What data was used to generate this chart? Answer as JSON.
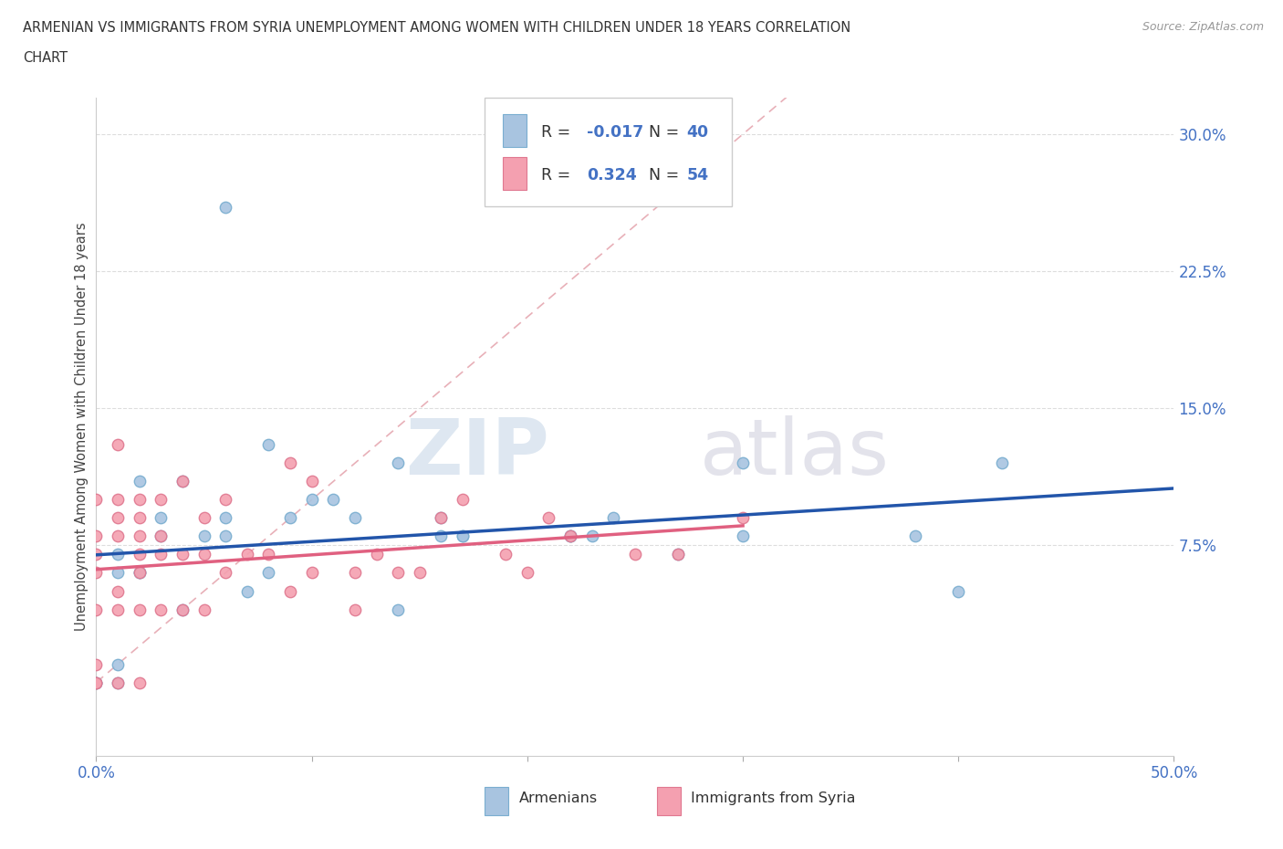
{
  "title_line1": "ARMENIAN VS IMMIGRANTS FROM SYRIA UNEMPLOYMENT AMONG WOMEN WITH CHILDREN UNDER 18 YEARS CORRELATION",
  "title_line2": "CHART",
  "source": "Source: ZipAtlas.com",
  "ylabel": "Unemployment Among Women with Children Under 18 years",
  "xlim": [
    0.0,
    0.5
  ],
  "ylim": [
    -0.04,
    0.32
  ],
  "yticks": [
    0.075,
    0.15,
    0.225,
    0.3
  ],
  "ytick_labels": [
    "7.5%",
    "15.0%",
    "22.5%",
    "30.0%"
  ],
  "armenian_color": "#a8c4e0",
  "armenian_edge_color": "#7aaed0",
  "syria_color": "#f4a0b0",
  "syria_edge_color": "#e07890",
  "armenian_line_color": "#2255aa",
  "syria_line_color": "#e06080",
  "diagonal_color": "#e8b0b8",
  "watermark_zip": "ZIP",
  "watermark_atlas": "atlas",
  "background_color": "#ffffff",
  "grid_color": "#dddddd",
  "tick_color": "#4472c4",
  "armenian_x": [
    0.0,
    0.0,
    0.01,
    0.01,
    0.01,
    0.01,
    0.02,
    0.02,
    0.02,
    0.03,
    0.03,
    0.04,
    0.04,
    0.05,
    0.06,
    0.06,
    0.06,
    0.07,
    0.08,
    0.08,
    0.09,
    0.1,
    0.11,
    0.12,
    0.14,
    0.14,
    0.16,
    0.16,
    0.17,
    0.17,
    0.22,
    0.22,
    0.23,
    0.24,
    0.27,
    0.3,
    0.3,
    0.38,
    0.4,
    0.42
  ],
  "armenian_y": [
    0.0,
    0.0,
    0.0,
    0.01,
    0.06,
    0.07,
    0.06,
    0.06,
    0.11,
    0.08,
    0.09,
    0.04,
    0.11,
    0.08,
    0.08,
    0.09,
    0.26,
    0.05,
    0.06,
    0.13,
    0.09,
    0.1,
    0.1,
    0.09,
    0.12,
    0.04,
    0.08,
    0.09,
    0.08,
    0.08,
    0.08,
    0.08,
    0.08,
    0.09,
    0.07,
    0.12,
    0.08,
    0.08,
    0.05,
    0.12
  ],
  "syria_x": [
    0.0,
    0.0,
    0.0,
    0.0,
    0.0,
    0.0,
    0.0,
    0.0,
    0.01,
    0.01,
    0.01,
    0.01,
    0.01,
    0.01,
    0.01,
    0.02,
    0.02,
    0.02,
    0.02,
    0.02,
    0.02,
    0.02,
    0.03,
    0.03,
    0.03,
    0.03,
    0.04,
    0.04,
    0.04,
    0.05,
    0.05,
    0.05,
    0.06,
    0.06,
    0.07,
    0.08,
    0.09,
    0.09,
    0.1,
    0.1,
    0.12,
    0.12,
    0.13,
    0.14,
    0.15,
    0.16,
    0.17,
    0.19,
    0.2,
    0.21,
    0.22,
    0.25,
    0.27,
    0.3
  ],
  "syria_y": [
    0.0,
    0.0,
    0.01,
    0.04,
    0.06,
    0.07,
    0.08,
    0.1,
    0.0,
    0.04,
    0.05,
    0.08,
    0.09,
    0.1,
    0.13,
    0.0,
    0.04,
    0.06,
    0.07,
    0.08,
    0.09,
    0.1,
    0.04,
    0.07,
    0.08,
    0.1,
    0.04,
    0.07,
    0.11,
    0.04,
    0.07,
    0.09,
    0.06,
    0.1,
    0.07,
    0.07,
    0.05,
    0.12,
    0.06,
    0.11,
    0.04,
    0.06,
    0.07,
    0.06,
    0.06,
    0.09,
    0.1,
    0.07,
    0.06,
    0.09,
    0.08,
    0.07,
    0.07,
    0.09
  ],
  "legend_r1_label": "R = ",
  "legend_r1_val": "-0.017",
  "legend_n1_label": "N = ",
  "legend_n1_val": "40",
  "legend_r2_label": "R =  ",
  "legend_r2_val": "0.324",
  "legend_n2_label": "N = ",
  "legend_n2_val": "54",
  "bottom_legend1": "Armenians",
  "bottom_legend2": "Immigrants from Syria"
}
